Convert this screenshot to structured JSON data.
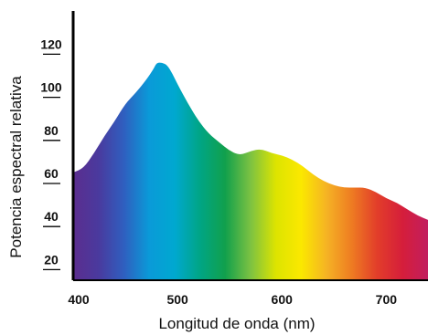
{
  "chart_data": {
    "type": "area",
    "title": "",
    "xlabel": "Longitud de onda (nm)",
    "ylabel": "Potencia espectral relativa",
    "xlim": [
      400,
      740
    ],
    "ylim": [
      10,
      135
    ],
    "x_ticks": [
      400,
      500,
      600,
      700
    ],
    "y_ticks": [
      20,
      40,
      60,
      80,
      100,
      120
    ],
    "grid": false,
    "legend": "none",
    "fill": "visible spectrum gradient (violet to red)",
    "series": [
      {
        "x": [
          400,
          410,
          420,
          430,
          440,
          450,
          460,
          470,
          477,
          480,
          485,
          490,
          495,
          500,
          510,
          520,
          530,
          540,
          550,
          560,
          570,
          580,
          590,
          600,
          610,
          620,
          630,
          640,
          650,
          660,
          670,
          680,
          690,
          700,
          710,
          720,
          730,
          740
        ],
        "y": [
          60,
          62,
          69,
          77,
          84,
          92,
          97,
          103,
          108,
          111,
          111,
          110,
          106,
          101,
          92,
          84,
          78,
          74,
          70,
          68,
          70,
          71,
          69,
          68,
          66,
          63,
          59,
          56,
          54,
          53,
          53,
          53,
          51,
          48,
          46,
          43,
          40,
          38
        ]
      }
    ],
    "spectrum_colors": [
      "#5b2d8e",
      "#4a3a9e",
      "#2f5fbf",
      "#0a9ad8",
      "#00a8d0",
      "#00a585",
      "#11a04c",
      "#7cc242",
      "#dde400",
      "#fbe800",
      "#f5b324",
      "#ee7b22",
      "#e23d2a",
      "#d51e3b",
      "#c21e5f"
    ]
  }
}
